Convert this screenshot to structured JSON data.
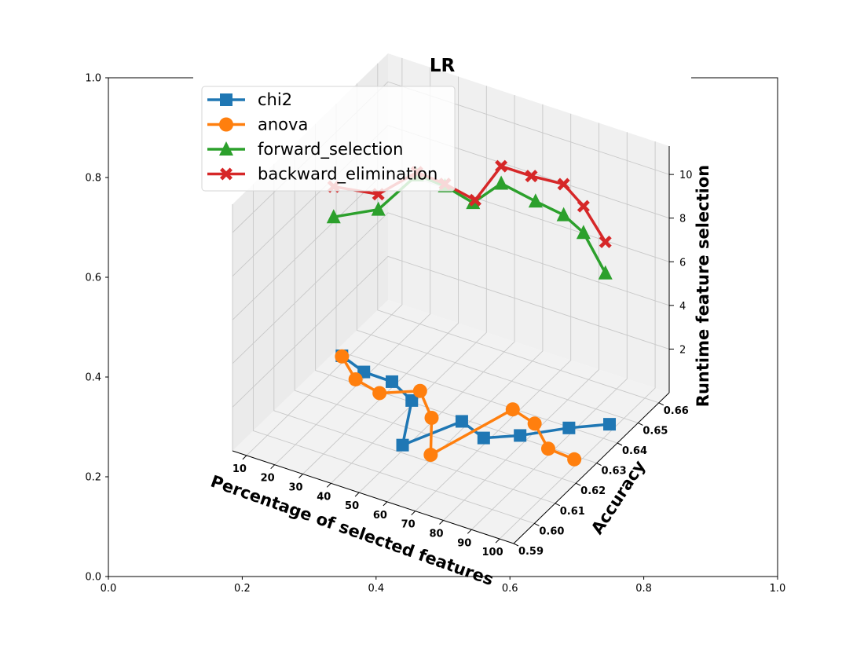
{
  "chart_data": {
    "type": "line3d",
    "title": "LR",
    "xlabel": "Percentage of selected features",
    "ylabel": "Accuracy",
    "zlabel": "Runtime feature selection",
    "xlim": [
      5,
      105
    ],
    "ylim": [
      0.59,
      0.665
    ],
    "zlim": [
      0,
      11.3
    ],
    "x_ticks": [
      "10",
      "20",
      "30",
      "40",
      "50",
      "60",
      "70",
      "80",
      "90",
      "100"
    ],
    "y_ticks": [
      "0.59",
      "0.60",
      "0.61",
      "0.62",
      "0.63",
      "0.64",
      "0.65",
      "0.66"
    ],
    "z_ticks": [
      "2",
      "4",
      "6",
      "8",
      "10"
    ],
    "outer_axes_x_ticks": [
      "0.0",
      "0.2",
      "0.4",
      "0.6",
      "0.8",
      "1.0"
    ],
    "outer_axes_y_ticks": [
      "0.0",
      "0.2",
      "0.4",
      "0.6",
      "0.8",
      "1.0"
    ],
    "grid": true,
    "legend_position": "top-left",
    "series": [
      {
        "name": "chi2",
        "color": "#1f77b4",
        "marker": "square",
        "points": [
          [
            10,
            0.636,
            0.33
          ],
          [
            20,
            0.633,
            0.29
          ],
          [
            30,
            0.633,
            0.27
          ],
          [
            40,
            0.629,
            0.2
          ],
          [
            50,
            0.611,
            0.24
          ],
          [
            60,
            0.626,
            0.37
          ],
          [
            70,
            0.623,
            0.31
          ],
          [
            80,
            0.627,
            0.48
          ],
          [
            90,
            0.637,
            0.33
          ],
          [
            100,
            0.643,
            0.37
          ]
        ]
      },
      {
        "name": "anova",
        "color": "#ff7f0e",
        "marker": "circle",
        "points": [
          [
            10,
            0.636,
            0.3
          ],
          [
            20,
            0.629,
            0.32
          ],
          [
            30,
            0.627,
            0.3
          ],
          [
            40,
            0.633,
            0.27
          ],
          [
            50,
            0.625,
            0.2
          ],
          [
            60,
            0.611,
            0.22
          ],
          [
            70,
            0.637,
            0.33
          ],
          [
            80,
            0.634,
            0.38
          ],
          [
            90,
            0.627,
            0.3
          ],
          [
            100,
            0.626,
            0.33
          ]
        ]
      },
      {
        "name": "forward_selection",
        "color": "#2ca02c",
        "marker": "triangle",
        "points": [
          [
            10,
            0.632,
            7.06
          ],
          [
            20,
            0.64,
            7.09
          ],
          [
            30,
            0.645,
            8.63
          ],
          [
            40,
            0.645,
            8.55
          ],
          [
            50,
            0.645,
            8.21
          ],
          [
            60,
            0.645,
            9.52
          ],
          [
            70,
            0.648,
            8.85
          ],
          [
            80,
            0.648,
            8.65
          ],
          [
            90,
            0.644,
            8.63
          ],
          [
            100,
            0.641,
            7.48
          ]
        ]
      },
      {
        "name": "backward_elimination",
        "color": "#d62728",
        "marker": "x",
        "points": [
          [
            10,
            0.632,
            8.45
          ],
          [
            20,
            0.64,
            7.79
          ],
          [
            30,
            0.645,
            8.76
          ],
          [
            40,
            0.645,
            8.65
          ],
          [
            50,
            0.646,
            8.24
          ],
          [
            60,
            0.645,
            10.31
          ],
          [
            70,
            0.646,
            10.19
          ],
          [
            80,
            0.648,
            10.06
          ],
          [
            90,
            0.644,
            9.84
          ],
          [
            100,
            0.641,
            8.91
          ]
        ]
      }
    ]
  }
}
